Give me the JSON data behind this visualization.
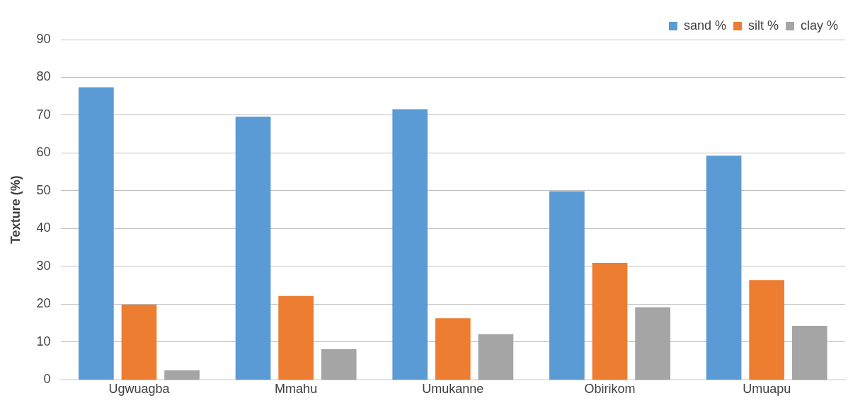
{
  "chart_data": {
    "type": "bar",
    "ylabel": "Texture (%)",
    "categories": [
      "Ugwuagba",
      "Mmahu",
      "Umukanne",
      "Obirikom",
      "Umuapu"
    ],
    "series": [
      {
        "name": "sand %",
        "color": "#5b9bd5",
        "values": [
          77.4,
          69.6,
          71.6,
          49.9,
          59.3
        ]
      },
      {
        "name": "silt %",
        "color": "#ed7d31",
        "values": [
          19.9,
          22.2,
          16.3,
          30.9,
          26.4
        ]
      },
      {
        "name": "clay %",
        "color": "#a5a5a5",
        "values": [
          2.5,
          8.1,
          12.1,
          19.2,
          14.3
        ]
      }
    ],
    "ylim": [
      0,
      90
    ],
    "yticks": [
      0,
      10,
      20,
      30,
      40,
      50,
      60,
      70,
      80,
      90
    ],
    "grid": "y",
    "legend": "top right"
  }
}
